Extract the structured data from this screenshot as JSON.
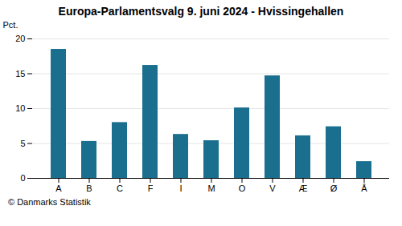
{
  "chart_data": {
    "type": "bar",
    "title": "Europa-Parlamentsvalg 9. juni 2024 - Hvissingehallen",
    "ylabel": "Pct.",
    "caption": "© Danmarks Statistik",
    "categories": [
      "A",
      "B",
      "C",
      "F",
      "I",
      "M",
      "O",
      "V",
      "Æ",
      "Ø",
      "Å"
    ],
    "values": [
      18.5,
      5.3,
      8.0,
      16.2,
      6.3,
      5.4,
      10.1,
      14.7,
      6.1,
      7.4,
      2.4
    ],
    "color": "#1a6e8e",
    "ylim": [
      0,
      20
    ],
    "yticks": [
      0,
      5,
      10,
      15,
      20
    ],
    "grid": true
  }
}
